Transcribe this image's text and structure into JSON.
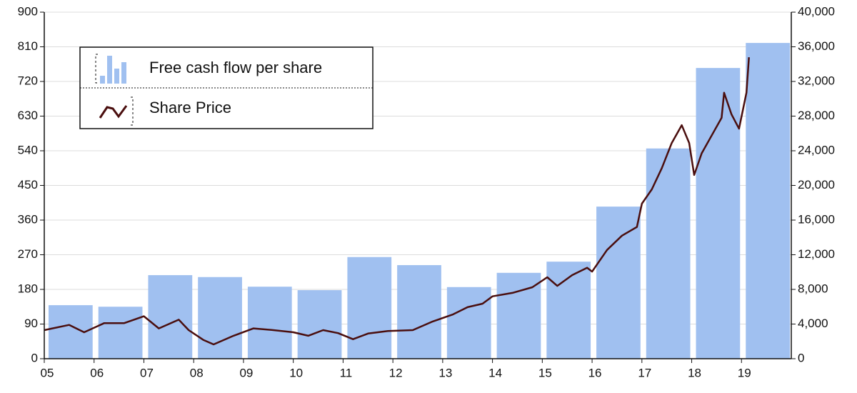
{
  "chart_data": {
    "type": "combo",
    "xlim": [
      5,
      20
    ],
    "xticks": [
      {
        "value": 5,
        "label": "05"
      },
      {
        "value": 6,
        "label": "06"
      },
      {
        "value": 7,
        "label": "07"
      },
      {
        "value": 8,
        "label": "08"
      },
      {
        "value": 9,
        "label": "09"
      },
      {
        "value": 10,
        "label": "10"
      },
      {
        "value": 11,
        "label": "11"
      },
      {
        "value": 12,
        "label": "12"
      },
      {
        "value": 13,
        "label": "13"
      },
      {
        "value": 14,
        "label": "14"
      },
      {
        "value": 15,
        "label": "15"
      },
      {
        "value": 16,
        "label": "16"
      },
      {
        "value": 17,
        "label": "17"
      },
      {
        "value": 18,
        "label": "18"
      },
      {
        "value": 19,
        "label": "19"
      }
    ],
    "ylim": [
      0,
      900
    ],
    "yticks": [
      0,
      90,
      180,
      270,
      360,
      450,
      540,
      630,
      720,
      810,
      900
    ],
    "y2lim": [
      0,
      40000
    ],
    "y2ticks": [
      0,
      {
        "value": 4000,
        "label": "4,000"
      },
      {
        "value": 8000,
        "label": "8,000"
      },
      {
        "value": 12000,
        "label": "12,000"
      },
      {
        "value": 16000,
        "label": "16,000"
      },
      {
        "value": 20000,
        "label": "20,000"
      },
      {
        "value": 24000,
        "label": "24,000"
      },
      {
        "value": 28000,
        "label": "28,000"
      },
      {
        "value": 32000,
        "label": "32,000"
      },
      {
        "value": 36000,
        "label": "36,000"
      },
      {
        "value": 40000,
        "label": "40,000"
      }
    ],
    "grid": true,
    "legend": "upper left",
    "series": [
      {
        "name": "Free cash flow per share",
        "type": "bar",
        "color": "#a0c0f0",
        "x": [
          5,
          6,
          7,
          8,
          9,
          10,
          11,
          12,
          13,
          14,
          15,
          16,
          17,
          18,
          19
        ],
        "values": [
          139,
          135,
          217,
          212,
          187,
          178,
          264,
          243,
          186,
          223,
          252,
          395,
          546,
          755,
          820
        ]
      },
      {
        "name": "Share Price",
        "type": "line",
        "color": "#4a0e0e",
        "axis": "y2",
        "x": [
          5.0,
          5.5,
          5.8,
          6.2,
          6.6,
          7.0,
          7.3,
          7.7,
          7.9,
          8.2,
          8.4,
          8.8,
          9.2,
          9.6,
          10.0,
          10.3,
          10.6,
          10.9,
          11.2,
          11.5,
          11.9,
          12.4,
          12.8,
          13.2,
          13.5,
          13.8,
          14.0,
          14.4,
          14.8,
          15.1,
          15.3,
          15.6,
          15.9,
          16.0,
          16.3,
          16.6,
          16.9,
          17.0,
          17.2,
          17.4,
          17.6,
          17.8,
          17.95,
          18.05,
          18.2,
          18.4,
          18.6,
          18.65,
          18.8,
          18.95,
          19.1,
          19.15
        ],
        "values": [
          3300,
          3900,
          3050,
          4100,
          4100,
          4900,
          3500,
          4500,
          3300,
          2150,
          1650,
          2650,
          3500,
          3300,
          3050,
          2650,
          3300,
          2950,
          2250,
          2900,
          3200,
          3300,
          4300,
          5100,
          5950,
          6350,
          7200,
          7600,
          8250,
          9400,
          8400,
          9650,
          10500,
          10050,
          12550,
          14200,
          15200,
          17900,
          19550,
          22000,
          24900,
          26950,
          24900,
          21200,
          23700,
          25750,
          27800,
          30700,
          28200,
          26550,
          30700,
          34800
        ]
      }
    ]
  }
}
